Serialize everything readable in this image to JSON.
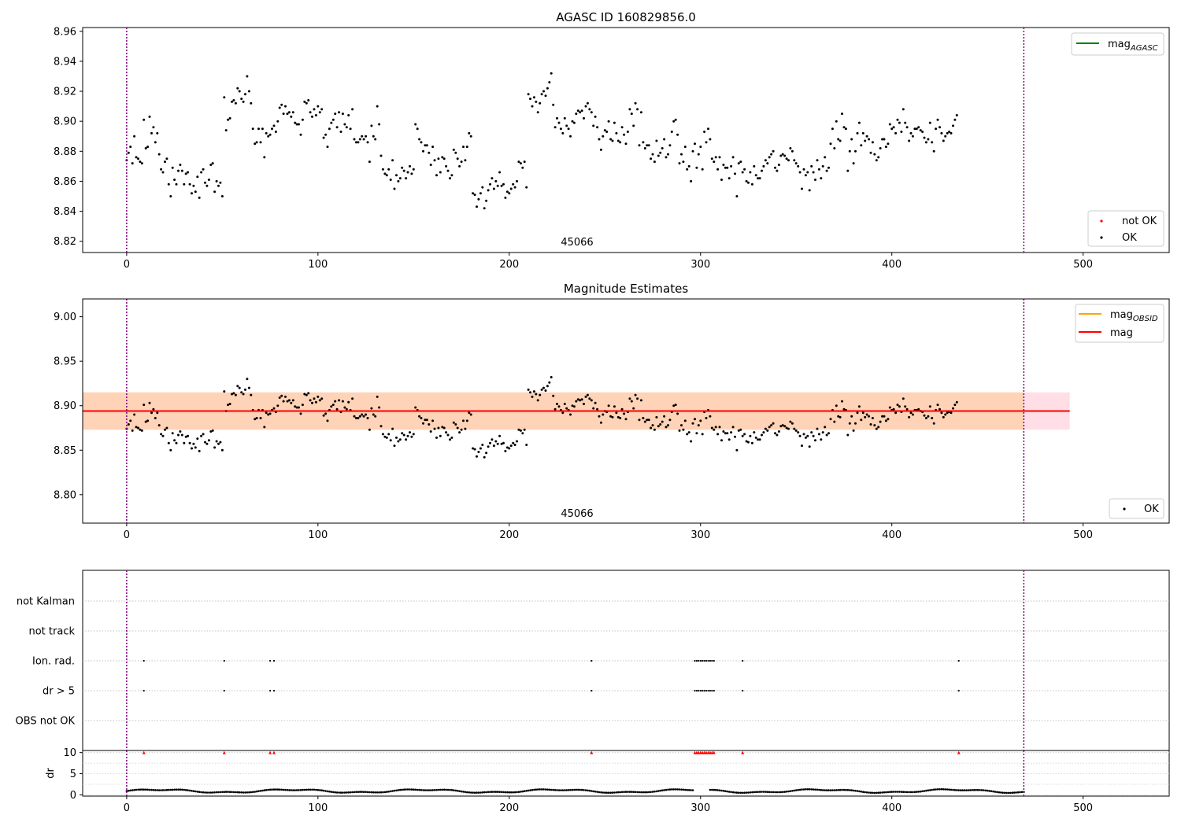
{
  "chart_data": [
    {
      "type": "scatter",
      "title": "AGASC ID 160829856.0",
      "xlabel": "",
      "ylabel": "",
      "xlim": [
        -23,
        545
      ],
      "ylim": [
        8.8125,
        8.9625
      ],
      "x_ticks": [
        0,
        100,
        200,
        300,
        400,
        500
      ],
      "y_ticks": [
        8.82,
        8.84,
        8.86,
        8.88,
        8.9,
        8.92,
        8.94,
        8.96
      ],
      "obsid_label": "45066",
      "vlines": [
        0,
        469
      ],
      "legend_upper": {
        "position": "upper-right",
        "entries": [
          {
            "label": "mag",
            "sub": "AGASC",
            "color": "#008000"
          }
        ]
      },
      "legend_lower": {
        "position": "lower-right",
        "entries": [
          {
            "label": "not OK",
            "color": "#ff0000"
          },
          {
            "label": "OK",
            "color": "#000000"
          }
        ]
      },
      "series": [
        {
          "name": "OK",
          "color": "#000000",
          "x_start": 0,
          "x_step": 1,
          "values": [
            8.874,
            8.879,
            8.883,
            8.872,
            8.89,
            8.876,
            8.875,
            8.873,
            8.872,
            8.901,
            8.882,
            8.883,
            8.903,
            8.892,
            8.896,
            8.886,
            8.892,
            8.878,
            8.868,
            8.866,
            8.873,
            8.875,
            8.858,
            8.85,
            8.869,
            8.861,
            8.858,
            8.867,
            8.871,
            8.867,
            8.858,
            8.865,
            8.866,
            8.858,
            8.852,
            8.857,
            8.853,
            8.863,
            8.849,
            8.866,
            8.868,
            8.859,
            8.857,
            8.861,
            8.871,
            8.872,
            8.853,
            8.86,
            8.857,
            8.859,
            8.85,
            8.916,
            8.894,
            8.901,
            8.902,
            8.913,
            8.914,
            8.912,
            8.922,
            8.92,
            8.915,
            8.913,
            8.918,
            8.93,
            8.92,
            8.912,
            8.895,
            8.885,
            8.886,
            8.895,
            8.886,
            8.895,
            8.876,
            8.892,
            8.89,
            8.891,
            8.895,
            8.897,
            8.893,
            8.9,
            8.909,
            8.911,
            8.905,
            8.91,
            8.905,
            8.906,
            8.903,
            8.906,
            8.899,
            8.898,
            8.898,
            8.891,
            8.901,
            8.913,
            8.912,
            8.914,
            8.906,
            8.903,
            8.908,
            8.904,
            8.91,
            8.906,
            8.908,
            8.889,
            8.891,
            8.883,
            8.895,
            8.899,
            8.901,
            8.905,
            8.896,
            8.906,
            8.893,
            8.905,
            8.898,
            8.896,
            8.904,
            8.895,
            8.908,
            8.888,
            8.886,
            8.886,
            8.888,
            8.89,
            8.888,
            8.89,
            8.886,
            8.873,
            8.897,
            8.89,
            8.888,
            8.91,
            8.898,
            8.877,
            8.868,
            8.865,
            8.864,
            8.868,
            8.861,
            8.874,
            8.855,
            8.864,
            8.86,
            8.862,
            8.869,
            8.867,
            8.862,
            8.866,
            8.87,
            8.865,
            8.868,
            8.898,
            8.895,
            8.888,
            8.886,
            8.88,
            8.884,
            8.884,
            8.879,
            8.871,
            8.883,
            8.874,
            8.864,
            8.875,
            8.866,
            8.876,
            8.875,
            8.87,
            8.867,
            8.862,
            8.864,
            8.881,
            8.879,
            8.875,
            8.87,
            8.873,
            8.883,
            8.874,
            8.883,
            8.892,
            8.89,
            8.852,
            8.851,
            8.843,
            8.848,
            8.852,
            8.856,
            8.842,
            8.847,
            8.854,
            8.858,
            8.862,
            8.855,
            8.86,
            8.857,
            8.866,
            8.857,
            8.858,
            8.849,
            8.853,
            8.852,
            8.855,
            8.858,
            8.856,
            8.86,
            8.873,
            8.872,
            8.869,
            8.873,
            8.856,
            8.918,
            8.915,
            8.91,
            8.916,
            8.913,
            8.906,
            8.912,
            8.918,
            8.92,
            8.917,
            8.922,
            8.926,
            8.932,
            8.911,
            8.896,
            8.902,
            8.899,
            8.895,
            8.892,
            8.902,
            8.897,
            8.895,
            8.89,
            8.9,
            8.899,
            8.905,
            8.907,
            8.906,
            8.907,
            8.902,
            8.91,
            8.912,
            8.908,
            8.906,
            8.897,
            8.903,
            8.896,
            8.888,
            8.881,
            8.89,
            8.894,
            8.893,
            8.9,
            8.888,
            8.887,
            8.899,
            8.892,
            8.887,
            8.886,
            8.896,
            8.891,
            8.885,
            8.893,
            8.908,
            8.905,
            8.897,
            8.912,
            8.908,
            8.884,
            8.906,
            8.886,
            8.882,
            8.884,
            8.884,
            8.875,
            8.878,
            8.873,
            8.887,
            8.877,
            8.879,
            8.882,
            8.888,
            8.876,
            8.878,
            8.884,
            8.893,
            8.9,
            8.901,
            8.891,
            8.872,
            8.878,
            8.873,
            8.883,
            8.868,
            8.87,
            8.86,
            8.88,
            8.885,
            8.869,
            8.878,
            8.883,
            8.868,
            8.893,
            8.886,
            8.895,
            8.888,
            8.875,
            8.873,
            8.876,
            8.868,
            8.876,
            8.861,
            8.871,
            8.869,
            8.869,
            8.862,
            8.87,
            8.876,
            8.865,
            8.85,
            8.872,
            8.873,
            8.866,
            8.868,
            8.86,
            8.859,
            8.866,
            8.858,
            8.87,
            8.864,
            8.862,
            8.862,
            8.867,
            8.87,
            8.874,
            8.872,
            8.876,
            8.878,
            8.88,
            8.869,
            8.867,
            8.871,
            8.877,
            8.878,
            8.877,
            8.875,
            8.874,
            8.882,
            8.88,
            8.874,
            8.872,
            8.87,
            8.866,
            8.855,
            8.868,
            8.864,
            8.866,
            8.854,
            8.87,
            8.866,
            8.861,
            8.874,
            8.868,
            8.862,
            8.87,
            8.876,
            8.867,
            8.869,
            8.885,
            8.895,
            8.882,
            8.9,
            8.888,
            8.887,
            8.905,
            8.896,
            8.895,
            8.867,
            8.88,
            8.888,
            8.872,
            8.88,
            8.892,
            8.899,
            8.884,
            8.892,
            8.887,
            8.89,
            8.888,
            8.879,
            8.886,
            8.878,
            8.874,
            8.876,
            8.882,
            8.888,
            8.888,
            8.883,
            8.885,
            8.898,
            8.895,
            8.896,
            8.892,
            8.901,
            8.899,
            8.893,
            8.908,
            8.899,
            8.896,
            8.887,
            8.892,
            8.89,
            8.895,
            8.895,
            8.896,
            8.894,
            8.893,
            8.889,
            8.886,
            8.888,
            8.899,
            8.886,
            8.88,
            8.895,
            8.901,
            8.896,
            8.892,
            8.887,
            8.89,
            8.892,
            8.893,
            8.892,
            8.897,
            8.901,
            8.904
          ]
        }
      ]
    },
    {
      "type": "scatter",
      "title": "Magnitude Estimates",
      "xlabel": "",
      "ylabel": "",
      "xlim": [
        -23,
        545
      ],
      "ylim": [
        8.768,
        9.02
      ],
      "x_ticks": [
        0,
        100,
        200,
        300,
        400,
        500
      ],
      "y_ticks": [
        8.8,
        8.85,
        8.9,
        8.95,
        9.0
      ],
      "obsid_label": "45066",
      "vlines": [
        0,
        469
      ],
      "mean_mag": 8.894,
      "band_range": [
        8.873,
        8.915
      ],
      "band_x": [
        -23,
        493
      ],
      "obs_band_x": [
        -23,
        296
      ],
      "legend_upper": {
        "position": "upper-right",
        "entries": [
          {
            "label": "mag",
            "sub": "OBSID",
            "color": "#ffa500"
          },
          {
            "label": "mag",
            "sub": "",
            "color": "#ff0000"
          }
        ]
      },
      "legend_lower": {
        "position": "lower-right",
        "entries": [
          {
            "label": "OK",
            "color": "#000000"
          }
        ]
      },
      "series_ref": "same points as panel 1"
    },
    {
      "type": "scatter",
      "title": "",
      "xlabel": "",
      "ylabel": "",
      "xlim": [
        -23,
        545
      ],
      "x_ticks": [
        0,
        100,
        200,
        300,
        400,
        500
      ],
      "vlines": [
        0,
        469
      ],
      "flag_categories": [
        "not Kalman",
        "not track",
        "Ion. rad.",
        "dr > 5",
        "OBS not OK"
      ],
      "flag_x": [
        9,
        51,
        75,
        77,
        243,
        297,
        298,
        299,
        300,
        301,
        302,
        303,
        304,
        305,
        306,
        307,
        322,
        435
      ],
      "flags": {
        "not Kalman": [],
        "not track": [],
        "Ion. rad.": [
          9,
          51,
          75,
          77,
          243,
          297,
          298,
          299,
          300,
          301,
          302,
          303,
          304,
          305,
          306,
          307,
          322,
          435
        ],
        "dr > 5": [
          9,
          51,
          75,
          77,
          243,
          297,
          298,
          299,
          300,
          301,
          302,
          303,
          304,
          305,
          306,
          307,
          322,
          435
        ],
        "OBS not OK": []
      }
    },
    {
      "type": "scatter",
      "title": "",
      "xlabel": "",
      "ylabel": "dr",
      "xlim": [
        -23,
        545
      ],
      "ylim": [
        -0.3,
        10.5
      ],
      "x_ticks": [
        0,
        100,
        200,
        300,
        400,
        500
      ],
      "y_ticks": [
        0,
        5,
        10
      ],
      "vlines": [
        0,
        469
      ],
      "clipped_value": 10,
      "clipped_color": "#ff0000",
      "clipped_x": [
        9,
        51,
        75,
        77,
        243,
        297,
        298,
        299,
        300,
        301,
        302,
        303,
        304,
        305,
        306,
        307,
        322,
        435
      ],
      "dr_note": "per-point dr values small (~0.5-1.5)"
    }
  ]
}
